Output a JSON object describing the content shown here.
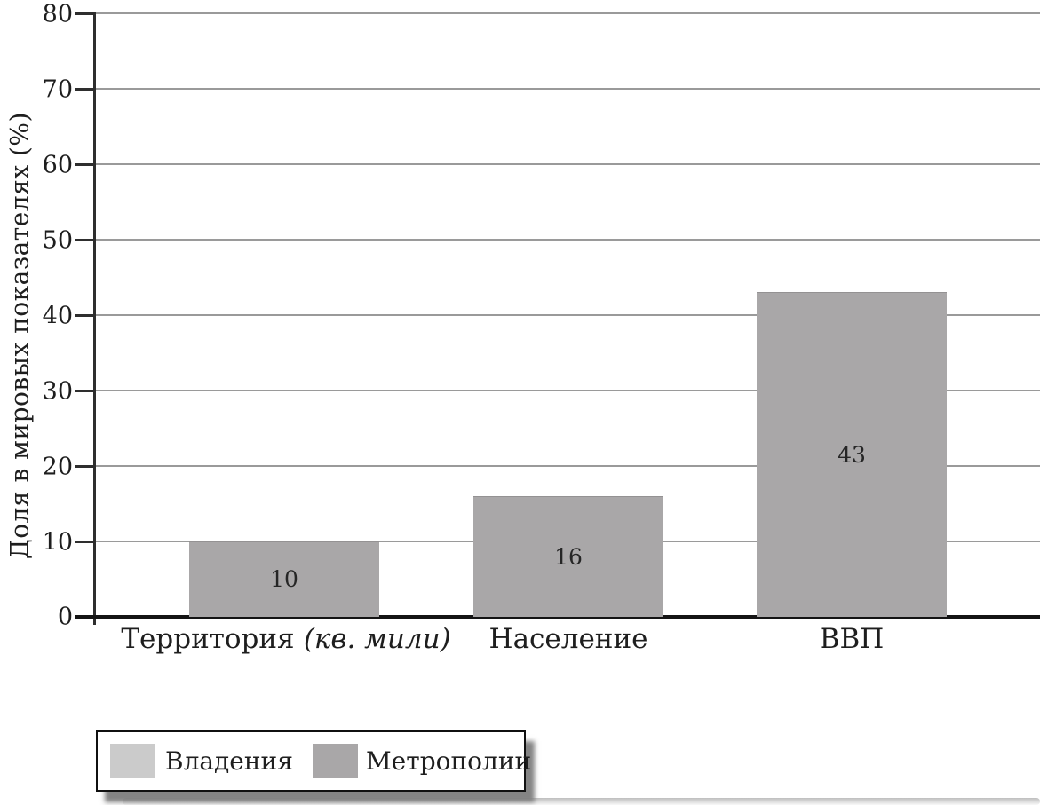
{
  "chart_data": {
    "type": "bar",
    "title": "",
    "ylabel": "Доля в мировых показателях (%)",
    "xlabel": "",
    "ylim": [
      0,
      80
    ],
    "ytick_step": 10,
    "yticks": [
      "80",
      "70",
      "60",
      "50",
      "40",
      "30",
      "20",
      "10",
      "0"
    ],
    "grid": true,
    "categories": [
      {
        "label": "Территория",
        "unit": "(кв. мили)",
        "value": 10
      },
      {
        "label": "Население",
        "unit": "",
        "value": 16
      },
      {
        "label": "ВВП",
        "unit": "",
        "value": 43
      }
    ],
    "series": [
      {
        "name": "Метрополии",
        "values": [
          10,
          16,
          43
        ]
      }
    ],
    "bar_color": "#a9a7a8",
    "grid_color": "#9a9a9a",
    "axis_color": "#2e2e2e",
    "legend": {
      "position": "bottom-left",
      "items": [
        {
          "label": "Владения",
          "color": "#cbcbcb"
        },
        {
          "label": "Метрополии",
          "color": "#a9a7a8"
        }
      ]
    }
  }
}
